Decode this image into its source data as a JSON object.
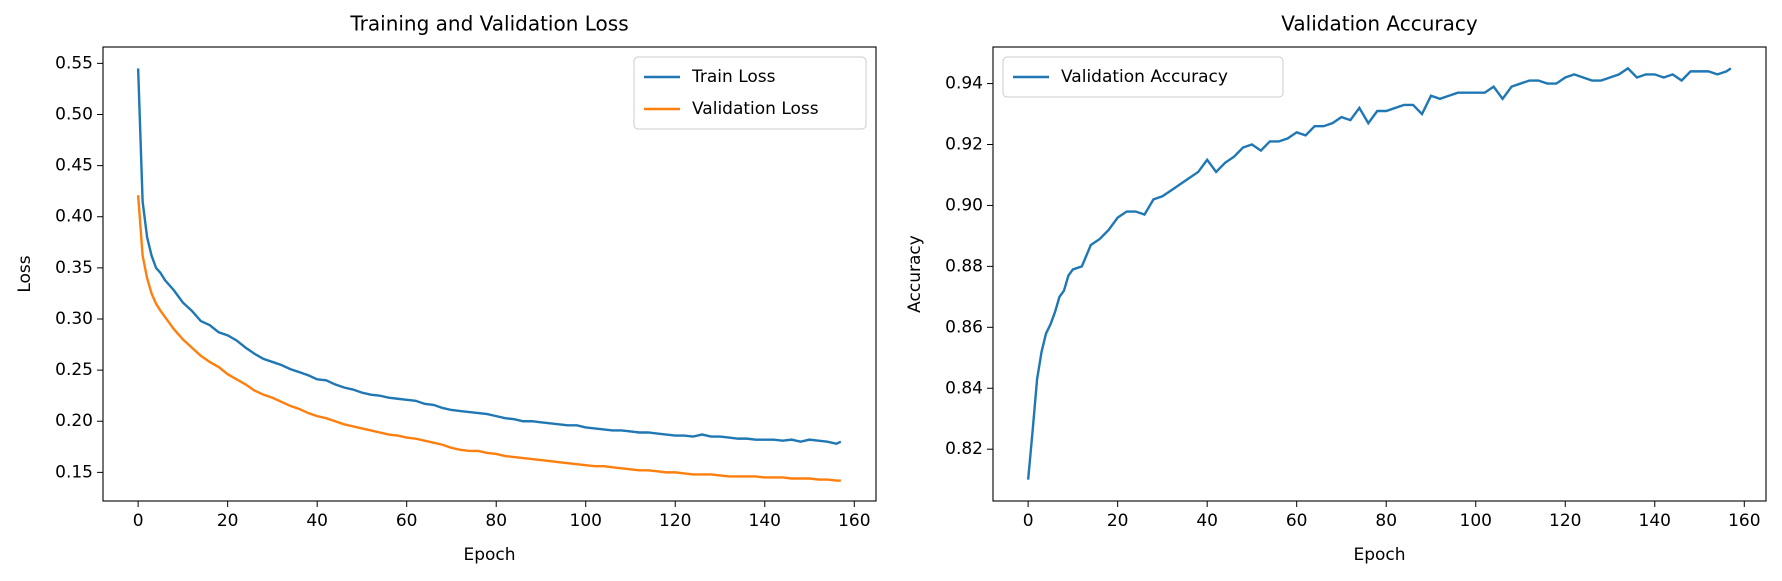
{
  "chart_data": [
    {
      "type": "line",
      "title": "Training and Validation Loss",
      "x_label": "Epoch",
      "y_label": "Loss",
      "x": [
        0,
        1,
        2,
        3,
        4,
        5,
        6,
        7,
        8,
        9,
        10,
        12,
        14,
        16,
        18,
        20,
        22,
        24,
        26,
        28,
        30,
        32,
        34,
        36,
        38,
        40,
        42,
        44,
        46,
        48,
        50,
        52,
        54,
        56,
        58,
        60,
        62,
        64,
        66,
        68,
        70,
        72,
        74,
        76,
        78,
        80,
        82,
        84,
        86,
        88,
        90,
        92,
        94,
        96,
        98,
        100,
        102,
        104,
        106,
        108,
        110,
        112,
        114,
        116,
        118,
        120,
        122,
        124,
        126,
        128,
        130,
        132,
        134,
        136,
        138,
        140,
        142,
        144,
        146,
        148,
        150,
        152,
        154,
        156,
        157
      ],
      "series": [
        {
          "name": "Train Loss",
          "color": "#1f77b4",
          "values": [
            0.545,
            0.415,
            0.38,
            0.362,
            0.35,
            0.345,
            0.338,
            0.333,
            0.328,
            0.322,
            0.316,
            0.308,
            0.298,
            0.294,
            0.287,
            0.284,
            0.279,
            0.272,
            0.266,
            0.261,
            0.258,
            0.255,
            0.251,
            0.248,
            0.245,
            0.241,
            0.24,
            0.236,
            0.233,
            0.231,
            0.228,
            0.226,
            0.225,
            0.223,
            0.222,
            0.221,
            0.22,
            0.217,
            0.216,
            0.213,
            0.211,
            0.21,
            0.209,
            0.208,
            0.207,
            0.205,
            0.203,
            0.202,
            0.2,
            0.2,
            0.199,
            0.198,
            0.197,
            0.196,
            0.196,
            0.194,
            0.193,
            0.192,
            0.191,
            0.191,
            0.19,
            0.189,
            0.189,
            0.188,
            0.187,
            0.186,
            0.186,
            0.185,
            0.187,
            0.185,
            0.185,
            0.184,
            0.183,
            0.183,
            0.182,
            0.182,
            0.182,
            0.181,
            0.182,
            0.18,
            0.182,
            0.181,
            0.18,
            0.178,
            0.18
          ]
        },
        {
          "name": "Validation Loss",
          "color": "#ff7f0e",
          "values": [
            0.421,
            0.362,
            0.34,
            0.325,
            0.315,
            0.308,
            0.302,
            0.296,
            0.29,
            0.285,
            0.28,
            0.272,
            0.264,
            0.258,
            0.253,
            0.246,
            0.241,
            0.236,
            0.23,
            0.226,
            0.223,
            0.219,
            0.215,
            0.212,
            0.208,
            0.205,
            0.203,
            0.2,
            0.197,
            0.195,
            0.193,
            0.191,
            0.189,
            0.187,
            0.186,
            0.184,
            0.183,
            0.181,
            0.179,
            0.177,
            0.174,
            0.172,
            0.171,
            0.171,
            0.169,
            0.168,
            0.166,
            0.165,
            0.164,
            0.163,
            0.162,
            0.161,
            0.16,
            0.159,
            0.158,
            0.157,
            0.156,
            0.156,
            0.155,
            0.154,
            0.153,
            0.152,
            0.152,
            0.151,
            0.15,
            0.15,
            0.149,
            0.148,
            0.148,
            0.148,
            0.147,
            0.146,
            0.146,
            0.146,
            0.146,
            0.145,
            0.145,
            0.145,
            0.144,
            0.144,
            0.144,
            0.143,
            0.143,
            0.142,
            0.142
          ]
        }
      ],
      "xlim": [
        -7.85,
        164.85
      ],
      "xticks": [
        0,
        20,
        40,
        60,
        80,
        100,
        120,
        140,
        160
      ],
      "ylim": [
        0.122,
        0.566
      ],
      "yticks": [
        0.15,
        {
          "value": 0.2,
          "label": "0.20"
        },
        0.25,
        {
          "value": 0.3,
          "label": "0.30"
        },
        0.35,
        {
          "value": 0.4,
          "label": "0.40"
        },
        0.45,
        {
          "value": 0.5,
          "label": "0.50"
        },
        0.55
      ],
      "legend": "upper-right"
    },
    {
      "type": "line",
      "title": "Validation Accuracy",
      "x_label": "Epoch",
      "y_label": "Accuracy",
      "x": [
        0,
        1,
        2,
        3,
        4,
        5,
        6,
        7,
        8,
        9,
        10,
        12,
        14,
        16,
        18,
        20,
        22,
        24,
        26,
        28,
        30,
        32,
        34,
        36,
        38,
        40,
        42,
        44,
        46,
        48,
        50,
        52,
        54,
        56,
        58,
        60,
        62,
        64,
        66,
        68,
        70,
        72,
        74,
        76,
        78,
        80,
        82,
        84,
        86,
        88,
        90,
        92,
        94,
        96,
        98,
        100,
        102,
        104,
        106,
        108,
        110,
        112,
        114,
        116,
        118,
        120,
        122,
        124,
        126,
        128,
        130,
        132,
        134,
        136,
        138,
        140,
        142,
        144,
        146,
        148,
        150,
        152,
        154,
        156,
        157
      ],
      "series": [
        {
          "name": "Validation Accuracy",
          "color": "#1f77b4",
          "values": [
            0.81,
            0.826,
            0.843,
            0.852,
            0.858,
            0.861,
            0.865,
            0.87,
            0.872,
            0.877,
            0.879,
            0.88,
            0.887,
            0.889,
            0.892,
            0.896,
            0.898,
            0.898,
            0.897,
            0.902,
            0.903,
            0.905,
            0.907,
            0.909,
            0.911,
            0.915,
            0.911,
            0.914,
            0.916,
            0.919,
            0.92,
            0.918,
            0.921,
            0.921,
            0.922,
            0.924,
            0.923,
            0.926,
            0.926,
            0.927,
            0.929,
            0.928,
            0.932,
            0.927,
            0.931,
            0.931,
            0.932,
            0.933,
            0.933,
            0.93,
            0.936,
            0.935,
            0.936,
            0.937,
            0.937,
            0.937,
            0.937,
            0.939,
            0.935,
            0.939,
            0.94,
            0.941,
            0.941,
            0.94,
            0.94,
            0.942,
            0.943,
            0.942,
            0.941,
            0.941,
            0.942,
            0.943,
            0.945,
            0.942,
            0.943,
            0.943,
            0.942,
            0.943,
            0.941,
            0.944,
            0.944,
            0.944,
            0.943,
            0.944,
            0.945
          ]
        }
      ],
      "xlim": [
        -7.85,
        164.85
      ],
      "xticks": [
        0,
        20,
        40,
        60,
        80,
        100,
        120,
        140,
        160
      ],
      "ylim": [
        0.803,
        0.952
      ],
      "yticks": [
        0.82,
        0.84,
        0.86,
        0.88,
        {
          "value": 0.9,
          "label": "0.90"
        },
        0.92,
        0.94
      ],
      "legend": "upper-left"
    }
  ]
}
